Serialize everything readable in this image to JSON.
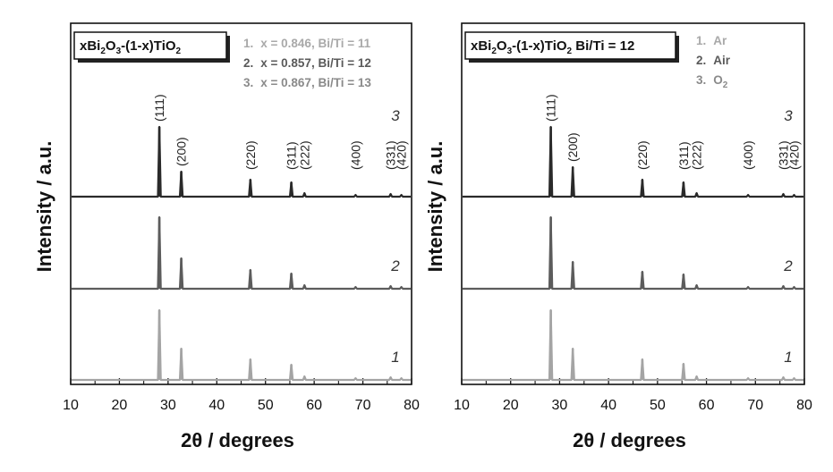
{
  "colors": {
    "curve1": "#a4a4a4",
    "curve2": "#5c5c5c",
    "curve3": "#2a2a2a",
    "axis": "#111111",
    "legend1": "#a9a9a9",
    "legend2": "#5a5a5a",
    "legend3": "#8a8a8a"
  },
  "chart_data": [
    {
      "type": "line",
      "title": "",
      "xlabel": "2θ / degrees",
      "ylabel": "Intensity / a.u.",
      "xlim": [
        10,
        80
      ],
      "xticks": [
        "10",
        "20",
        "30",
        "40",
        "50",
        "60",
        "70",
        "80"
      ],
      "composition": {
        "main": "xBi",
        "s1": "2",
        "m1": "O",
        "s2": "3",
        "m2": "-(1-x)TiO",
        "s3": "2",
        "tail": ""
      },
      "legend": [
        {
          "index": "1.",
          "text": "x = 0.846, Bi/Ti = 11",
          "color": "legend1"
        },
        {
          "index": "2.",
          "text": "x = 0.857, Bi/Ti = 12",
          "color": "legend2"
        },
        {
          "index": "3.",
          "text": "x = 0.867, Bi/Ti = 13",
          "color": "legend3"
        }
      ],
      "peak_labels": [
        {
          "hkl": "(111)",
          "x": 28.2
        },
        {
          "hkl": "(200)",
          "x": 32.7
        },
        {
          "hkl": "(220)",
          "x": 46.9
        },
        {
          "hkl": "(311)",
          "x": 55.3
        },
        {
          "hkl": "(222)",
          "x": 58.0
        },
        {
          "hkl": "(400)",
          "x": 68.5
        },
        {
          "hkl": "(331)",
          "x": 75.7
        },
        {
          "hkl": "(420)",
          "x": 77.9
        }
      ],
      "series": [
        {
          "name": "1",
          "color": "curve1",
          "peaks": [
            {
              "x": 28.2,
              "h": 78
            },
            {
              "x": 32.7,
              "h": 35
            },
            {
              "x": 46.9,
              "h": 23
            },
            {
              "x": 55.3,
              "h": 17
            },
            {
              "x": 58.0,
              "h": 4
            },
            {
              "x": 68.5,
              "h": 2
            },
            {
              "x": 75.7,
              "h": 3
            },
            {
              "x": 77.9,
              "h": 2
            }
          ]
        },
        {
          "name": "2",
          "color": "curve2",
          "peaks": [
            {
              "x": 28.2,
              "h": 80
            },
            {
              "x": 32.7,
              "h": 34
            },
            {
              "x": 46.9,
              "h": 21
            },
            {
              "x": 55.3,
              "h": 17
            },
            {
              "x": 58.0,
              "h": 4
            },
            {
              "x": 68.5,
              "h": 2
            },
            {
              "x": 75.7,
              "h": 3
            },
            {
              "x": 77.9,
              "h": 2
            }
          ]
        },
        {
          "name": "3",
          "color": "curve3",
          "peaks": [
            {
              "x": 28.2,
              "h": 78
            },
            {
              "x": 32.7,
              "h": 28
            },
            {
              "x": 46.9,
              "h": 19
            },
            {
              "x": 55.3,
              "h": 16
            },
            {
              "x": 58.0,
              "h": 4
            },
            {
              "x": 68.5,
              "h": 2
            },
            {
              "x": 75.7,
              "h": 3
            },
            {
              "x": 77.9,
              "h": 2
            }
          ]
        }
      ]
    },
    {
      "type": "line",
      "title": "",
      "xlabel": "2θ / degrees",
      "ylabel": "Intensity / a.u.",
      "xlim": [
        10,
        80
      ],
      "xticks": [
        "10",
        "20",
        "30",
        "40",
        "50",
        "60",
        "70",
        "80"
      ],
      "composition": {
        "main": "xBi",
        "s1": "2",
        "m1": "O",
        "s2": "3",
        "m2": "-(1-x)TiO",
        "s3": "2",
        "tail": "  Bi/Ti = 12"
      },
      "legend": [
        {
          "index": "1.",
          "text": "Ar",
          "color": "legend1",
          "sub": ""
        },
        {
          "index": "2.",
          "text": "Air",
          "color": "legend2",
          "sub": ""
        },
        {
          "index": "3.",
          "text": "O",
          "color": "legend3",
          "sub": "2"
        }
      ],
      "peak_labels": [
        {
          "hkl": "(111)",
          "x": 28.2
        },
        {
          "hkl": "(200)",
          "x": 32.7
        },
        {
          "hkl": "(220)",
          "x": 46.9
        },
        {
          "hkl": "(311)",
          "x": 55.3
        },
        {
          "hkl": "(222)",
          "x": 58.0
        },
        {
          "hkl": "(400)",
          "x": 68.5
        },
        {
          "hkl": "(331)",
          "x": 75.7
        },
        {
          "hkl": "(420)",
          "x": 77.9
        }
      ],
      "series": [
        {
          "name": "1",
          "color": "curve1",
          "peaks": [
            {
              "x": 28.2,
              "h": 78
            },
            {
              "x": 32.7,
              "h": 35
            },
            {
              "x": 46.9,
              "h": 23
            },
            {
              "x": 55.3,
              "h": 18
            },
            {
              "x": 58.0,
              "h": 4
            },
            {
              "x": 68.5,
              "h": 2
            },
            {
              "x": 75.7,
              "h": 3
            },
            {
              "x": 77.9,
              "h": 2
            }
          ]
        },
        {
          "name": "2",
          "color": "curve2",
          "peaks": [
            {
              "x": 28.2,
              "h": 80
            },
            {
              "x": 32.7,
              "h": 30
            },
            {
              "x": 46.9,
              "h": 19
            },
            {
              "x": 55.3,
              "h": 16
            },
            {
              "x": 58.0,
              "h": 4
            },
            {
              "x": 68.5,
              "h": 2
            },
            {
              "x": 75.7,
              "h": 3
            },
            {
              "x": 77.9,
              "h": 2
            }
          ]
        },
        {
          "name": "3",
          "color": "curve3",
          "peaks": [
            {
              "x": 28.2,
              "h": 78
            },
            {
              "x": 32.7,
              "h": 33
            },
            {
              "x": 46.9,
              "h": 19
            },
            {
              "x": 55.3,
              "h": 16
            },
            {
              "x": 58.0,
              "h": 4
            },
            {
              "x": 68.5,
              "h": 2
            },
            {
              "x": 75.7,
              "h": 3
            },
            {
              "x": 77.9,
              "h": 2
            }
          ]
        }
      ]
    }
  ]
}
